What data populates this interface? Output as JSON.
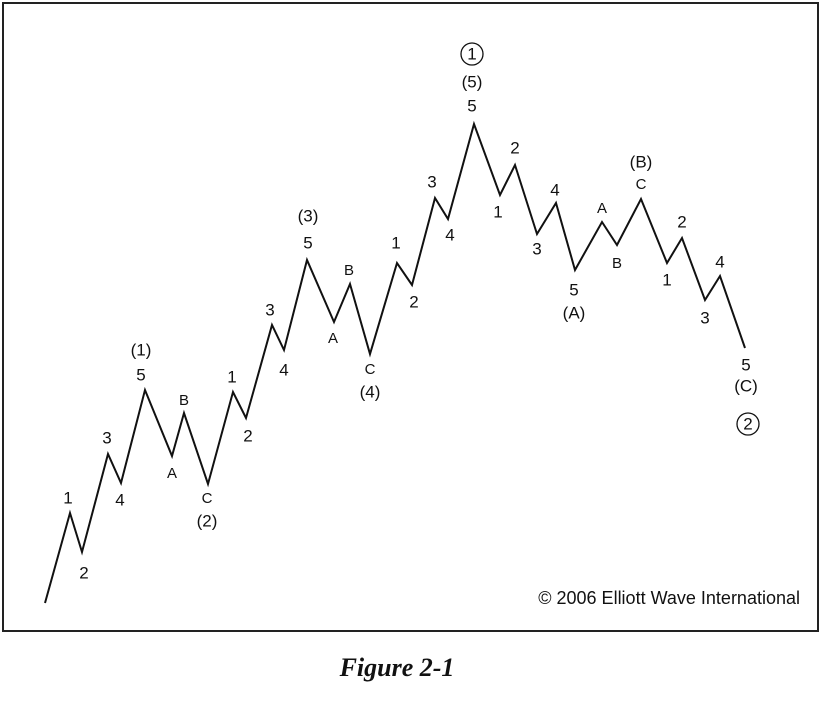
{
  "labels": [
    "1",
    "2",
    "3",
    "4",
    "5",
    "(1)",
    "A",
    "B",
    "C",
    "(2)",
    "1",
    "2",
    "3",
    "4",
    "5",
    "(3)",
    "A",
    "B",
    "C",
    "(4)",
    "1",
    "2",
    "3",
    "4",
    "5",
    "(5)",
    "1",
    "1",
    "2",
    "3",
    "4",
    "5",
    "(A)",
    "A",
    "B",
    "C",
    "(B)",
    "1",
    "2",
    "3",
    "4",
    "5",
    "(C)",
    "2"
  ],
  "copyright": "© 2006 Elliott Wave International",
  "caption": "Figure 2-1"
}
